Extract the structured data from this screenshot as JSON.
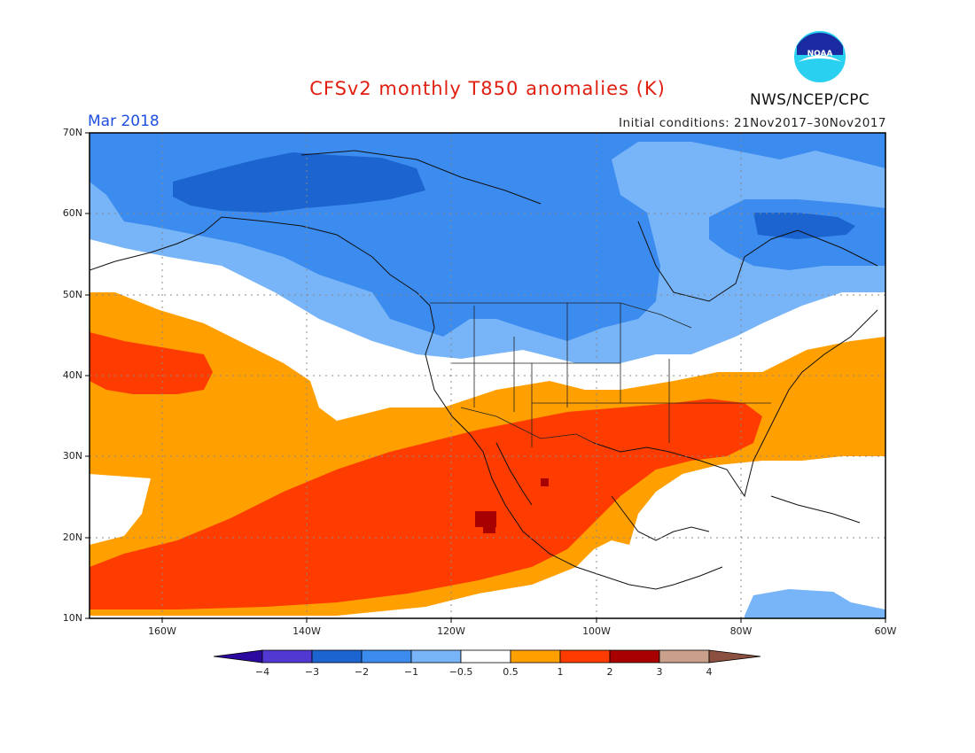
{
  "title": "CFSv2 monthly T850 anomalies (K)",
  "period": "Mar 2018",
  "initial_conditions": "Initial conditions: 21Nov2017–30Nov2017",
  "organization": "NWS/NCEP/CPC",
  "logo_text": "NOAA",
  "map": {
    "lat_labels": [
      "70N",
      "60N",
      "50N",
      "40N",
      "30N",
      "20N",
      "10N"
    ],
    "lon_labels": [
      "160W",
      "140W",
      "120W",
      "100W",
      "80W",
      "60W"
    ]
  },
  "colorbar": {
    "labels": [
      "−4",
      "−3",
      "−2",
      "−1",
      "−0.5",
      "0.5",
      "1",
      "2",
      "3",
      "4"
    ],
    "colors": {
      "lt_m4": "#2c0aa0",
      "m4_m3": "#5038d0",
      "m3_m2": "#1c64d0",
      "m2_m1": "#3c8cf0",
      "m1_m05": "#78b4f8",
      "neutral": "#ffffff",
      "p05_p1": "#ffa000",
      "p1_p2": "#ff3c00",
      "p2_p3": "#a80000",
      "p3_p4": "#c8a08c",
      "gt_p4": "#8c5040"
    }
  }
}
